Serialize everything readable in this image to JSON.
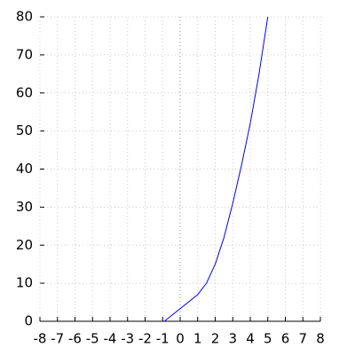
{
  "chart_data": {
    "type": "line",
    "x": [
      -0.9,
      1,
      1.5,
      2,
      2.5,
      3,
      3.5,
      4,
      4.5,
      5
    ],
    "series": [
      {
        "color": "#0000ff",
        "values": [
          0,
          7,
          10,
          15,
          22,
          31,
          41,
          52,
          65,
          80
        ]
      }
    ],
    "xlim": [
      -8,
      8
    ],
    "ylim": [
      0,
      80
    ],
    "xticks": [
      -8,
      -7,
      -6,
      -5,
      -4,
      -3,
      -2,
      -1,
      0,
      1,
      2,
      3,
      4,
      5,
      6,
      7,
      8
    ],
    "yticks": [
      0,
      10,
      20,
      30,
      40,
      50,
      60,
      70,
      80
    ],
    "grid": true
  }
}
